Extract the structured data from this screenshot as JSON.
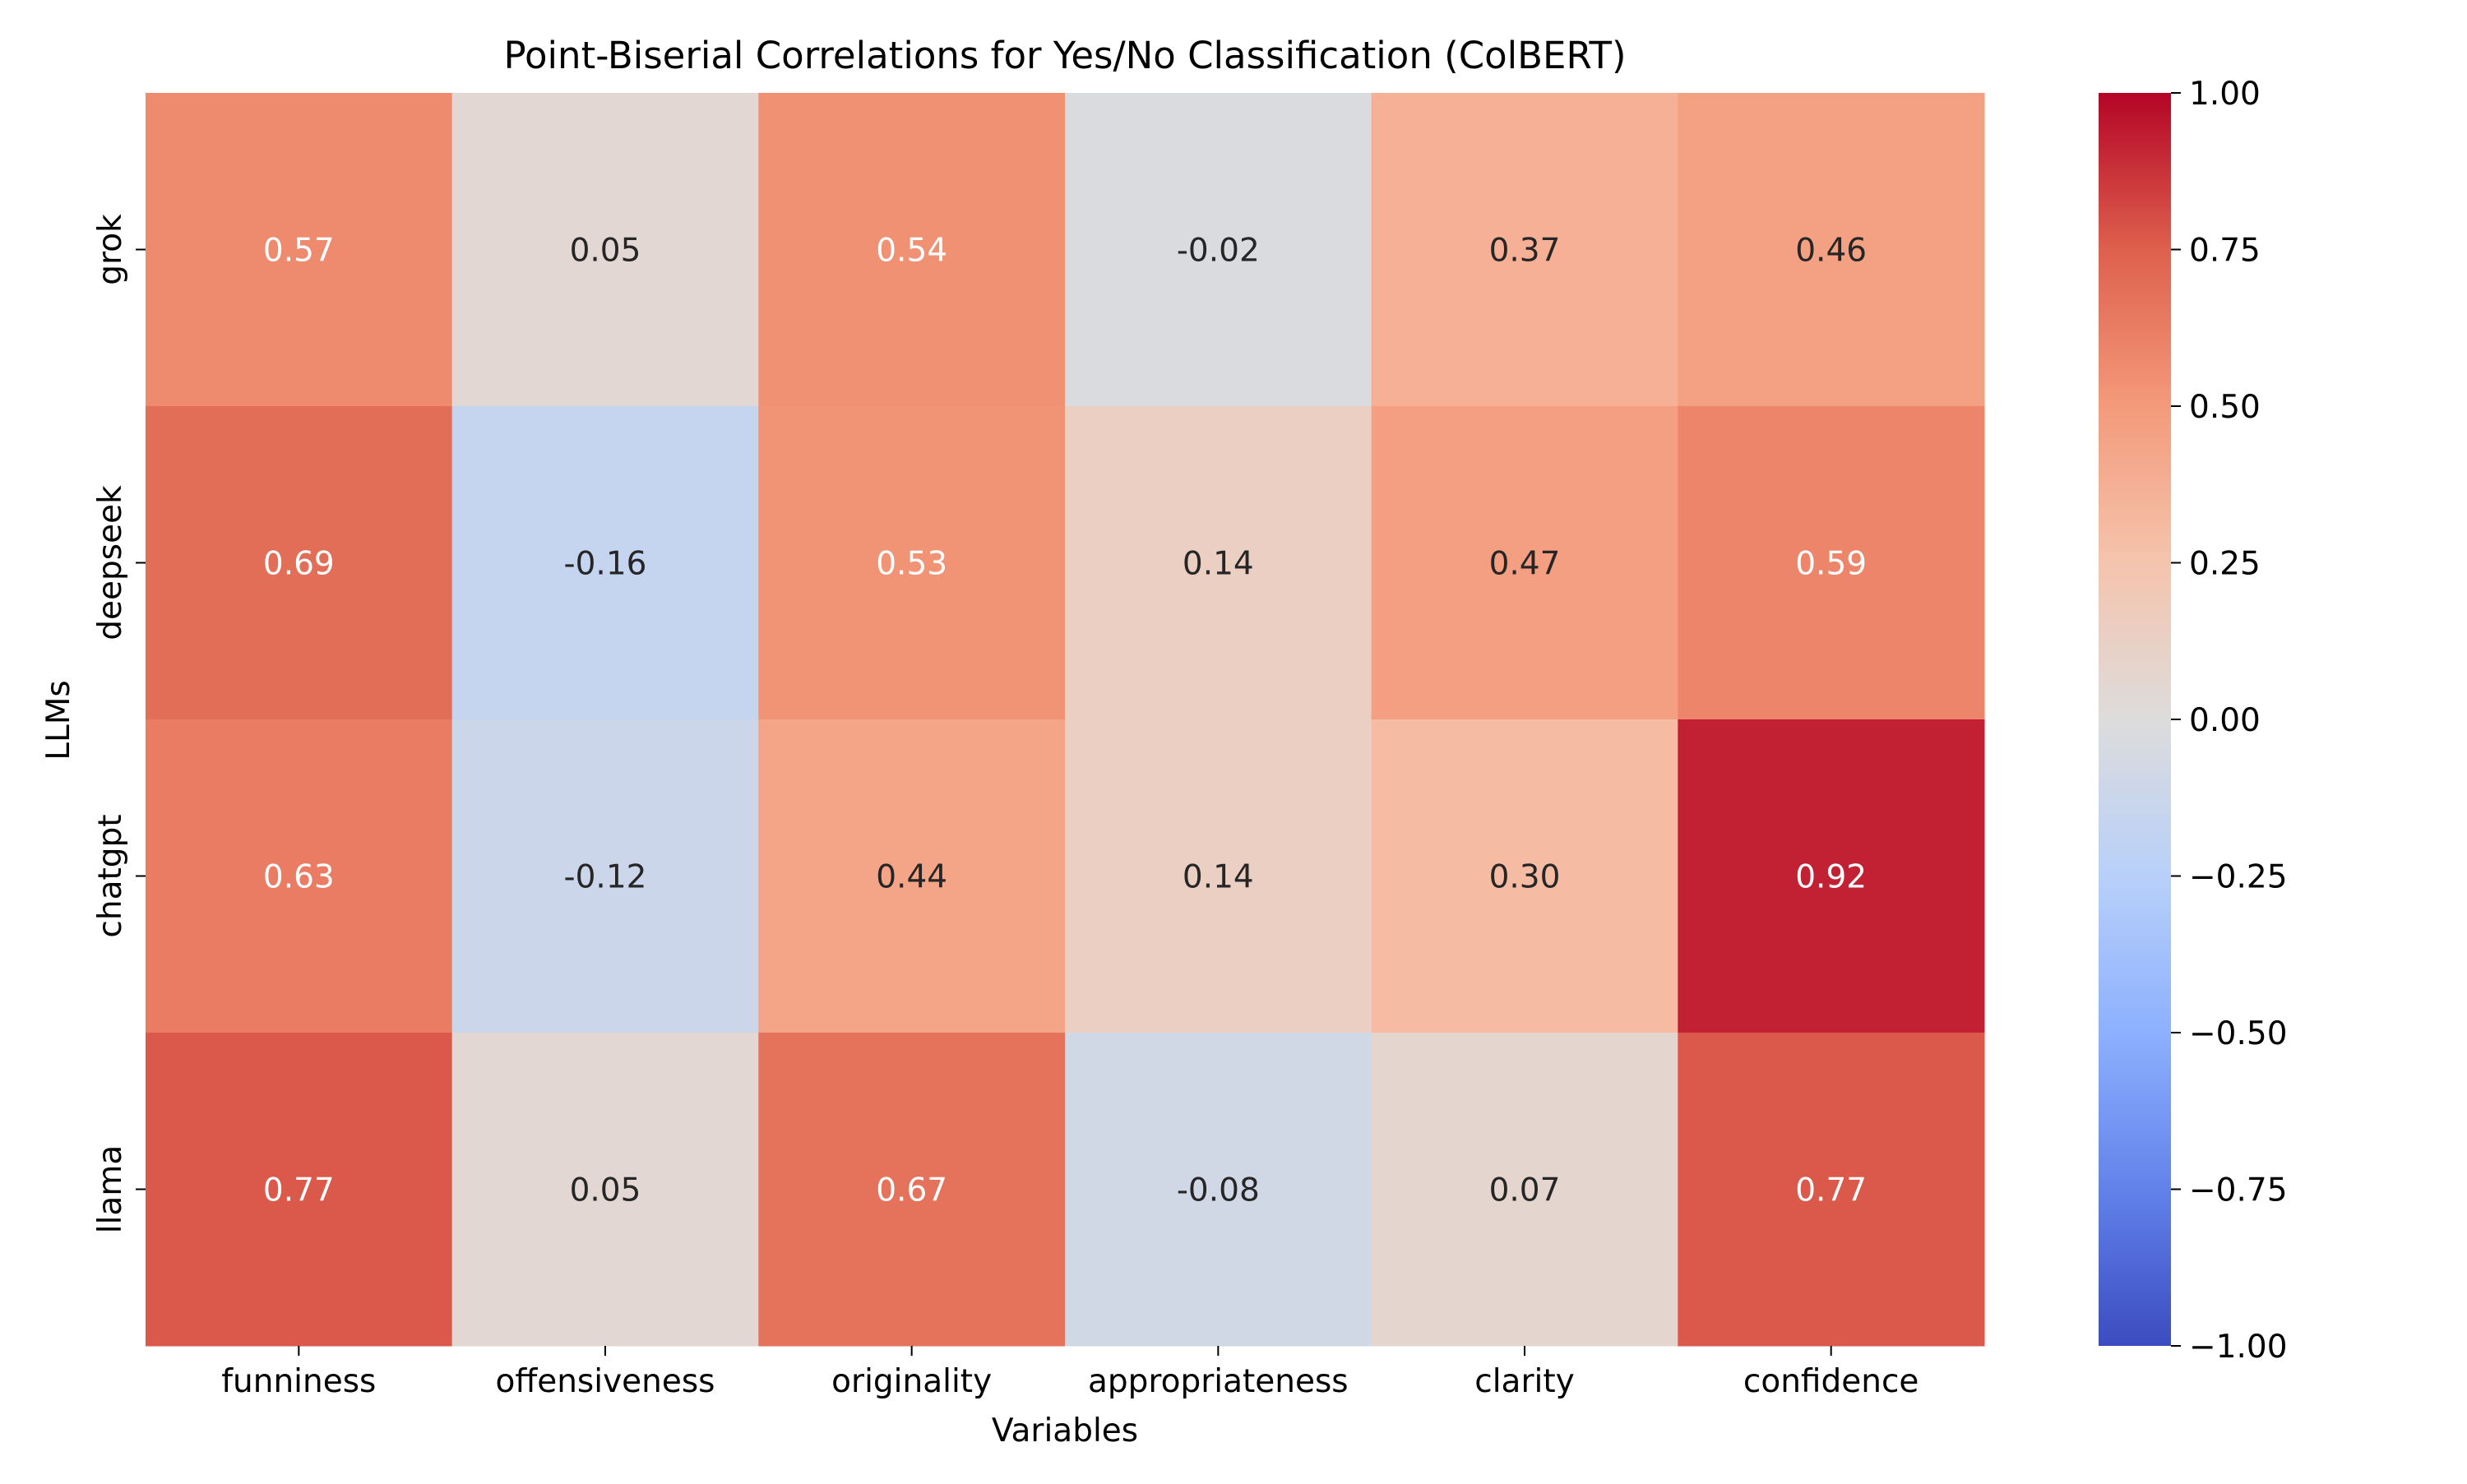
{
  "chart_data": {
    "type": "heatmap",
    "title": "Point-Biserial Correlations for Yes/No Classification (ColBERT)",
    "xlabel": "Variables",
    "ylabel": "LLMs",
    "x_categories": [
      "funniness",
      "offensiveness",
      "originality",
      "appropriateness",
      "clarity",
      "confidence"
    ],
    "y_categories": [
      "grok",
      "deepseek",
      "chatgpt",
      "llama"
    ],
    "values": [
      [
        0.57,
        0.05,
        0.54,
        -0.02,
        0.37,
        0.46
      ],
      [
        0.69,
        -0.16,
        0.53,
        0.14,
        0.47,
        0.59
      ],
      [
        0.63,
        -0.12,
        0.44,
        0.14,
        0.3,
        0.92
      ],
      [
        0.77,
        0.05,
        0.67,
        -0.08,
        0.07,
        0.77
      ]
    ],
    "value_labels": [
      [
        "0.57",
        "0.05",
        "0.54",
        "-0.02",
        "0.37",
        "0.46"
      ],
      [
        "0.69",
        "-0.16",
        "0.53",
        "0.14",
        "0.47",
        "0.59"
      ],
      [
        "0.63",
        "-0.12",
        "0.44",
        "0.14",
        "0.30",
        "0.92"
      ],
      [
        "0.77",
        "0.05",
        "0.67",
        "-0.08",
        "0.07",
        "0.77"
      ]
    ],
    "colormap": "coolwarm",
    "colorbar": {
      "range": [
        -1.0,
        1.0
      ],
      "ticks": [
        1.0,
        0.75,
        0.5,
        0.25,
        0.0,
        -0.25,
        -0.5,
        -0.75,
        -1.0
      ],
      "tick_labels": [
        "1.00",
        "0.75",
        "0.50",
        "0.25",
        "0.00",
        "−0.25",
        "−0.50",
        "−0.75",
        "−1.00"
      ],
      "placement": "right"
    },
    "colors": {
      "cold": "#3b4cc0",
      "neutral": "#dddcdc",
      "hot": "#b40426",
      "text_dark": "#262626",
      "text_light": "#ffffff"
    },
    "grid": false
  }
}
